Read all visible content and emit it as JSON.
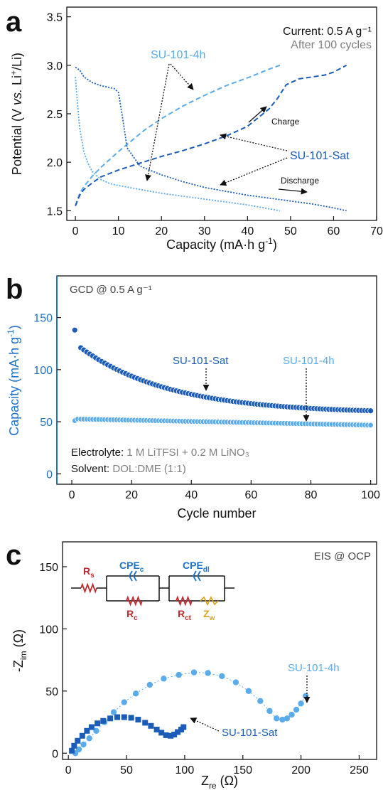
{
  "colors": {
    "dark": "#1a5cb8",
    "light": "#5aabea",
    "axis_b": "#1e72c8",
    "gray": "#7f7f7f",
    "black": "#111111",
    "red": "#c0282d",
    "gold": "#d9a51c"
  },
  "chart_data": [
    {
      "panel": "a",
      "type": "line",
      "title": "",
      "xlabel": "Capacity (mA·h g⁻¹)",
      "ylabel": "Potential (V vs. Li⁺/Li)",
      "xlim": [
        -2,
        70
      ],
      "ylim": [
        1.4,
        3.6
      ],
      "xticks": [
        "0",
        "10",
        "20",
        "30",
        "40",
        "50",
        "60",
        "70"
      ],
      "yticks": [
        "1.5",
        "2.0",
        "2.5",
        "3.0",
        "3.5"
      ],
      "annotations": {
        "current": "Current: 0.5 A g⁻¹",
        "after": "After 100 cycles",
        "charge": "Charge",
        "discharge": "Discharge",
        "sat_label": "SU-101-Sat",
        "h4_label": "SU-101-4h"
      },
      "series": [
        {
          "name": "SU-101-4h",
          "kind": "charge",
          "x": [
            0,
            1,
            2,
            4,
            6,
            8,
            10,
            13,
            16,
            20,
            25,
            30,
            35,
            40,
            45,
            47.5
          ],
          "y": [
            1.55,
            1.68,
            1.75,
            1.86,
            1.95,
            2.03,
            2.11,
            2.22,
            2.33,
            2.45,
            2.58,
            2.69,
            2.79,
            2.87,
            2.96,
            3.0
          ]
        },
        {
          "name": "SU-101-4h",
          "kind": "discharge",
          "x": [
            0,
            0.5,
            1,
            2,
            3,
            4,
            6,
            8,
            10,
            15,
            20,
            25,
            30,
            35,
            40,
            45,
            47.5
          ],
          "y": [
            2.88,
            2.6,
            2.35,
            2.1,
            1.98,
            1.9,
            1.82,
            1.78,
            1.76,
            1.72,
            1.68,
            1.65,
            1.62,
            1.59,
            1.56,
            1.52,
            1.5
          ]
        },
        {
          "name": "SU-101-Sat",
          "kind": "charge",
          "x": [
            0,
            1,
            2,
            4,
            6,
            10,
            15,
            20,
            25,
            30,
            35,
            40,
            45,
            47,
            49,
            52,
            55,
            58,
            60,
            63
          ],
          "y": [
            1.55,
            1.66,
            1.72,
            1.79,
            1.85,
            1.92,
            1.99,
            2.06,
            2.12,
            2.19,
            2.27,
            2.37,
            2.55,
            2.66,
            2.8,
            2.86,
            2.88,
            2.9,
            2.93,
            3.0
          ]
        },
        {
          "name": "SU-101-Sat",
          "kind": "discharge",
          "x": [
            0,
            1,
            2,
            4,
            6,
            8,
            9,
            10,
            11,
            12,
            15,
            20,
            25,
            30,
            35,
            40,
            45,
            50,
            55,
            60,
            63
          ],
          "y": [
            2.98,
            2.95,
            2.88,
            2.82,
            2.79,
            2.77,
            2.76,
            2.72,
            2.45,
            2.15,
            1.96,
            1.87,
            1.8,
            1.74,
            1.7,
            1.66,
            1.63,
            1.6,
            1.57,
            1.53,
            1.5
          ]
        }
      ]
    },
    {
      "panel": "b",
      "type": "scatter",
      "title": "GCD @ 0.5 A g⁻¹",
      "xlabel": "Cycle number",
      "ylabel": "Capacity (mA·h g⁻¹)",
      "xlim": [
        -5,
        102
      ],
      "ylim": [
        -10,
        190
      ],
      "xticks": [
        "0",
        "20",
        "40",
        "60",
        "80",
        "100"
      ],
      "yticks": [
        "0",
        "50",
        "100",
        "150"
      ],
      "annotations": {
        "sat_label": "SU-101-Sat",
        "h4_label": "SU-101-4h",
        "electrolyte_key": "Electrolyte: ",
        "electrolyte_val": "1 M LiTFSI + 0.2 M LiNO₃",
        "solvent_key": "Solvent: ",
        "solvent_val": "DOL:DME (1:1)"
      },
      "series": [
        {
          "name": "SU-101-Sat",
          "first_point": [
            1,
            138
          ],
          "model": "y = 58 + 63 * exp(-(n - 3) / 30)",
          "n_range": [
            3,
            100
          ]
        },
        {
          "name": "SU-101-4h",
          "first_point": [
            1,
            51
          ],
          "model": "y = 52.5 - 0.06 * (n - 4)",
          "n_range": [
            2,
            100
          ]
        }
      ]
    },
    {
      "panel": "c",
      "type": "scatter",
      "title": "EIS @ OCP",
      "xlabel": "Z_re (Ω)",
      "ylabel": "-Z_im (Ω)",
      "xlim": [
        -5,
        265
      ],
      "ylim": [
        -5,
        170
      ],
      "xticks": [
        "0",
        "50",
        "100",
        "150",
        "200",
        "250"
      ],
      "yticks": [
        "0",
        "50",
        "100",
        "150"
      ],
      "annotations": {
        "sat_label": "SU-101-Sat",
        "h4_label": "SU-101-4h",
        "circuit": {
          "rs": "R",
          "rs_sub": "s",
          "cpec": "CPE",
          "cpec_sub": "c",
          "rc": "R",
          "rc_sub": "c",
          "cpedl": "CPE",
          "cpedl_sub": "dl",
          "rct": "R",
          "rct_sub": "ct",
          "zw": "Z",
          "zw_sub": "w"
        }
      },
      "series": [
        {
          "name": "SU-101-Sat",
          "x": [
            3,
            5,
            8,
            12,
            16,
            20,
            25,
            30,
            36,
            42,
            48,
            54,
            60,
            66,
            71,
            76,
            80,
            84,
            88,
            91,
            94,
            97,
            99
          ],
          "y": [
            2,
            6,
            10,
            14,
            18,
            21,
            24,
            26,
            28,
            29,
            29,
            28.5,
            27,
            24.5,
            22,
            19,
            16.5,
            14.5,
            14,
            15,
            17,
            19,
            21
          ]
        },
        {
          "name": "SU-101-4h",
          "x": [
            6,
            9,
            13,
            18,
            24,
            31,
            39,
            48,
            58,
            70,
            82,
            95,
            108,
            120,
            132,
            144,
            155,
            165,
            173,
            179,
            184,
            188,
            192,
            196,
            200,
            204
          ],
          "y": [
            0,
            3,
            7,
            12,
            18,
            25,
            33,
            41,
            48,
            55,
            60,
            63,
            65,
            64.5,
            62,
            57,
            50,
            42,
            34,
            28,
            27,
            28,
            31,
            35,
            40,
            46
          ]
        }
      ]
    }
  ]
}
